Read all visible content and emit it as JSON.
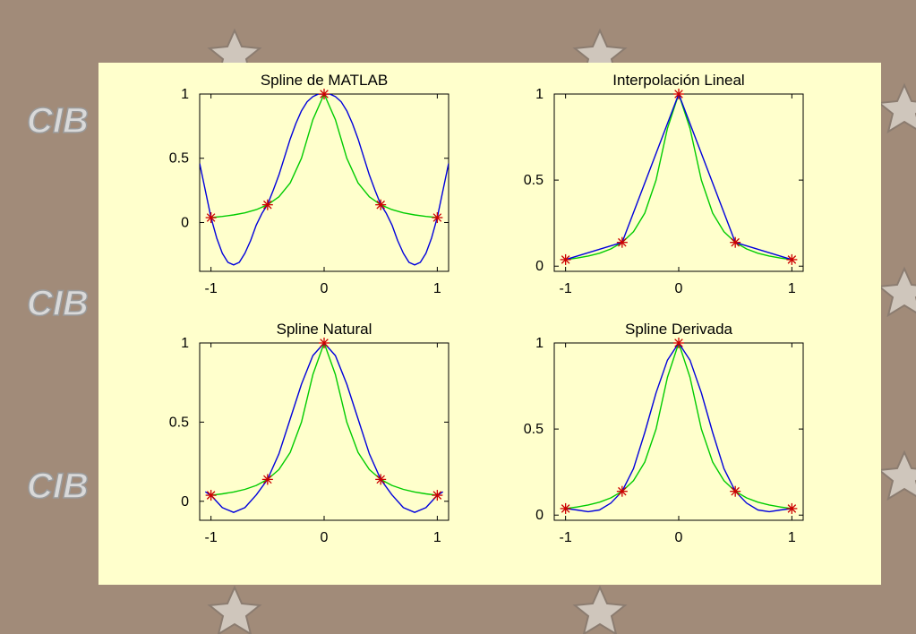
{
  "page": {
    "background_color": "#a18b79",
    "slide_color": "#ffffcc",
    "watermark_text": "CIB",
    "decoration": "star-icon"
  },
  "chart_data": [
    {
      "type": "line",
      "title": "Spline de MATLAB",
      "xlabel": "",
      "ylabel": "",
      "xlim": [
        -1.1,
        1.1
      ],
      "ylim": [
        -0.38,
        1.0
      ],
      "xticks": [
        "-1",
        "0",
        "1"
      ],
      "yticks": [
        "0",
        "0.5",
        "1"
      ],
      "grid": false,
      "series": [
        {
          "color": "#00cc00",
          "x": [
            -1,
            -0.9,
            -0.8,
            -0.7,
            -0.6,
            -0.5,
            -0.4,
            -0.3,
            -0.2,
            -0.1,
            0,
            0.1,
            0.2,
            0.3,
            0.4,
            0.5,
            0.6,
            0.7,
            0.8,
            0.9,
            1
          ],
          "y": [
            0.038,
            0.047,
            0.059,
            0.075,
            0.1,
            0.138,
            0.2,
            0.308,
            0.5,
            0.8,
            1,
            0.8,
            0.5,
            0.308,
            0.2,
            0.138,
            0.1,
            0.075,
            0.059,
            0.047,
            0.038
          ]
        },
        {
          "color": "#0000dd",
          "x": [
            -1.1,
            -1.05,
            -1,
            -0.95,
            -0.9,
            -0.85,
            -0.8,
            -0.75,
            -0.7,
            -0.65,
            -0.6,
            -0.55,
            -0.5,
            -0.45,
            -0.4,
            -0.35,
            -0.3,
            -0.25,
            -0.2,
            -0.15,
            -0.1,
            -0.05,
            0,
            0.05,
            0.1,
            0.15,
            0.2,
            0.25,
            0.3,
            0.35,
            0.4,
            0.45,
            0.5,
            0.55,
            0.6,
            0.65,
            0.7,
            0.75,
            0.8,
            0.85,
            0.9,
            0.95,
            1,
            1.05,
            1.1
          ],
          "y": [
            0.46,
            0.25,
            0.04,
            -0.12,
            -0.24,
            -0.31,
            -0.33,
            -0.31,
            -0.24,
            -0.14,
            -0.02,
            0.07,
            0.14,
            0.25,
            0.37,
            0.51,
            0.65,
            0.77,
            0.87,
            0.94,
            0.98,
            1.0,
            1,
            1.0,
            0.98,
            0.94,
            0.87,
            0.77,
            0.65,
            0.51,
            0.37,
            0.25,
            0.14,
            0.07,
            -0.02,
            -0.14,
            -0.24,
            -0.31,
            -0.33,
            -0.31,
            -0.24,
            -0.12,
            0.04,
            0.25,
            0.46
          ]
        }
      ],
      "markers": {
        "color": "#cc0000",
        "x": [
          -1,
          -0.5,
          0,
          0.5,
          1
        ],
        "y": [
          0.038,
          0.138,
          1,
          0.138,
          0.038
        ]
      }
    },
    {
      "type": "line",
      "title": "Interpolación Lineal",
      "xlabel": "",
      "ylabel": "",
      "xlim": [
        -1.1,
        1.1
      ],
      "ylim": [
        -0.03,
        1.0
      ],
      "xticks": [
        "-1",
        "0",
        "1"
      ],
      "yticks": [
        "0",
        "0.5",
        "1"
      ],
      "grid": false,
      "series": [
        {
          "color": "#00cc00",
          "x": [
            -1,
            -0.9,
            -0.8,
            -0.7,
            -0.6,
            -0.5,
            -0.4,
            -0.3,
            -0.2,
            -0.1,
            0,
            0.1,
            0.2,
            0.3,
            0.4,
            0.5,
            0.6,
            0.7,
            0.8,
            0.9,
            1
          ],
          "y": [
            0.038,
            0.047,
            0.059,
            0.075,
            0.1,
            0.138,
            0.2,
            0.308,
            0.5,
            0.8,
            1,
            0.8,
            0.5,
            0.308,
            0.2,
            0.138,
            0.1,
            0.075,
            0.059,
            0.047,
            0.038
          ]
        },
        {
          "color": "#0000dd",
          "x": [
            -1,
            -0.5,
            0,
            0.5,
            1
          ],
          "y": [
            0.038,
            0.138,
            1,
            0.138,
            0.038
          ]
        }
      ],
      "markers": {
        "color": "#cc0000",
        "x": [
          -1,
          -0.5,
          0,
          0.5,
          1
        ],
        "y": [
          0.038,
          0.138,
          1,
          0.138,
          0.038
        ]
      }
    },
    {
      "type": "line",
      "title": "Spline Natural",
      "xlabel": "",
      "ylabel": "",
      "xlim": [
        -1.1,
        1.1
      ],
      "ylim": [
        -0.12,
        1.0
      ],
      "xticks": [
        "-1",
        "0",
        "1"
      ],
      "yticks": [
        "0",
        "0.5",
        "1"
      ],
      "grid": false,
      "series": [
        {
          "color": "#00cc00",
          "x": [
            -1,
            -0.9,
            -0.8,
            -0.7,
            -0.6,
            -0.5,
            -0.4,
            -0.3,
            -0.2,
            -0.1,
            0,
            0.1,
            0.2,
            0.3,
            0.4,
            0.5,
            0.6,
            0.7,
            0.8,
            0.9,
            1
          ],
          "y": [
            0.038,
            0.047,
            0.059,
            0.075,
            0.1,
            0.138,
            0.2,
            0.308,
            0.5,
            0.8,
            1,
            0.8,
            0.5,
            0.308,
            0.2,
            0.138,
            0.1,
            0.075,
            0.059,
            0.047,
            0.038
          ]
        },
        {
          "color": "#0000dd",
          "x": [
            -1.05,
            -1,
            -0.9,
            -0.8,
            -0.7,
            -0.6,
            -0.5,
            -0.4,
            -0.3,
            -0.2,
            -0.1,
            0,
            0.1,
            0.2,
            0.3,
            0.4,
            0.5,
            0.6,
            0.7,
            0.8,
            0.9,
            1,
            1.05
          ],
          "y": [
            0.06,
            0.038,
            -0.04,
            -0.07,
            -0.04,
            0.04,
            0.138,
            0.3,
            0.52,
            0.74,
            0.92,
            1,
            0.92,
            0.74,
            0.52,
            0.3,
            0.138,
            0.04,
            -0.04,
            -0.07,
            -0.04,
            0.038,
            0.06
          ]
        }
      ],
      "markers": {
        "color": "#cc0000",
        "x": [
          -1,
          -0.5,
          0,
          0.5,
          1
        ],
        "y": [
          0.038,
          0.138,
          1,
          0.138,
          0.038
        ]
      }
    },
    {
      "type": "line",
      "title": "Spline Derivada",
      "xlabel": "",
      "ylabel": "",
      "xlim": [
        -1.1,
        1.1
      ],
      "ylim": [
        -0.03,
        1.0
      ],
      "xticks": [
        "-1",
        "0",
        "1"
      ],
      "yticks": [
        "0",
        "0.5",
        "1"
      ],
      "grid": false,
      "series": [
        {
          "color": "#00cc00",
          "x": [
            -1,
            -0.9,
            -0.8,
            -0.7,
            -0.6,
            -0.5,
            -0.4,
            -0.3,
            -0.2,
            -0.1,
            0,
            0.1,
            0.2,
            0.3,
            0.4,
            0.5,
            0.6,
            0.7,
            0.8,
            0.9,
            1
          ],
          "y": [
            0.038,
            0.047,
            0.059,
            0.075,
            0.1,
            0.138,
            0.2,
            0.308,
            0.5,
            0.8,
            1,
            0.8,
            0.5,
            0.308,
            0.2,
            0.138,
            0.1,
            0.075,
            0.059,
            0.047,
            0.038
          ]
        },
        {
          "color": "#0000dd",
          "x": [
            -1,
            -0.9,
            -0.8,
            -0.7,
            -0.6,
            -0.5,
            -0.4,
            -0.3,
            -0.2,
            -0.1,
            0,
            0.1,
            0.2,
            0.3,
            0.4,
            0.5,
            0.6,
            0.7,
            0.8,
            0.9,
            1
          ],
          "y": [
            0.038,
            0.03,
            0.02,
            0.03,
            0.07,
            0.138,
            0.27,
            0.48,
            0.71,
            0.9,
            1,
            0.9,
            0.71,
            0.48,
            0.27,
            0.138,
            0.07,
            0.03,
            0.02,
            0.03,
            0.038
          ]
        }
      ],
      "markers": {
        "color": "#cc0000",
        "x": [
          -1,
          -0.5,
          0,
          0.5,
          1
        ],
        "y": [
          0.038,
          0.138,
          1,
          0.138,
          0.038
        ]
      }
    }
  ]
}
